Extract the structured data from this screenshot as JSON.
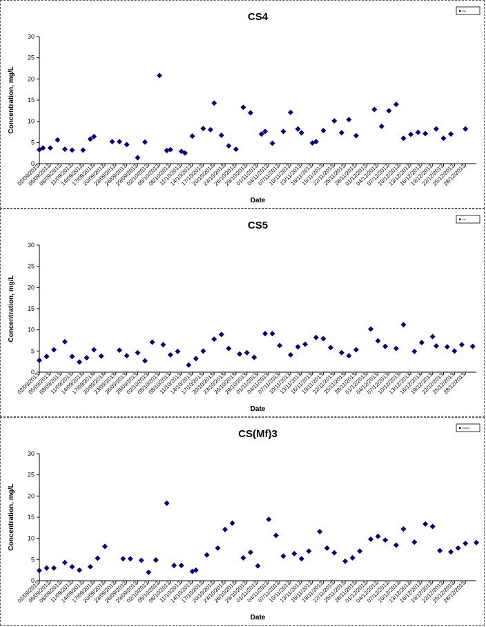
{
  "chart_data": [
    {
      "type": "scatter",
      "title": "CS4",
      "xlabel": "Date",
      "ylabel": "Concentration, mg/L",
      "ylim": [
        0,
        30
      ],
      "yticks": [
        0,
        5,
        10,
        15,
        20,
        25,
        30
      ],
      "grid": false,
      "legend_position": "top-right",
      "legend_text": "CS4",
      "marker_color": "#000080",
      "xtick_labels": [
        "02/09/2013",
        "05/09/2013",
        "08/09/2013",
        "11/09/2013",
        "14/09/2013",
        "17/09/2013",
        "20/09/2013",
        "23/09/2013",
        "26/09/2013",
        "29/09/2013",
        "02/10/2013",
        "05/10/2013",
        "08/10/2013",
        "11/10/2013",
        "14/10/2013",
        "17/10/2013",
        "20/10/2013",
        "23/10/2013",
        "26/10/2013",
        "29/10/2013",
        "01/11/2013",
        "04/11/2013",
        "07/11/2013",
        "10/11/2013",
        "13/11/2013",
        "16/11/2013",
        "19/11/2013",
        "22/11/2013",
        "25/11/2013",
        "28/11/2013",
        "01/12/2013",
        "04/12/2013",
        "07/12/2013",
        "10/12/2013",
        "13/12/2013",
        "16/12/2013",
        "19/12/2013",
        "22/12/2013",
        "25/12/2013",
        "28/12/2013"
      ],
      "series": [
        {
          "x": [
            "02/09/2013",
            "03/09/2013",
            "05/09/2013",
            "07/09/2013",
            "09/09/2013",
            "11/09/2013",
            "14/09/2013",
            "16/09/2013",
            "17/09/2013",
            "22/09/2013",
            "24/09/2013",
            "26/09/2013",
            "29/09/2013",
            "01/10/2013",
            "05/10/2013",
            "07/10/2013",
            "08/10/2013",
            "11/10/2013",
            "12/10/2013",
            "14/10/2013",
            "17/10/2013",
            "19/10/2013",
            "20/10/2013",
            "22/10/2013",
            "24/10/2013",
            "26/10/2013",
            "28/10/2013",
            "30/10/2013",
            "02/11/2013",
            "03/11/2013",
            "05/11/2013",
            "08/11/2013",
            "10/11/2013",
            "12/11/2013",
            "13/11/2013",
            "16/11/2013",
            "17/11/2013",
            "19/11/2013",
            "22/11/2013",
            "24/11/2013",
            "26/11/2013",
            "28/11/2013",
            "03/12/2013",
            "05/12/2013",
            "07/12/2013",
            "09/12/2013",
            "11/12/2013",
            "13/12/2013",
            "15/12/2013",
            "17/12/2013",
            "20/12/2013",
            "22/12/2013",
            "24/12/2013",
            "28/12/2013"
          ],
          "y": [
            3.3,
            3.7,
            3.7,
            5.6,
            3.4,
            3.2,
            3.2,
            5.8,
            6.4,
            5.2,
            5.2,
            4.5,
            1.4,
            5.1,
            20.8,
            3.1,
            3.3,
            2.9,
            2.5,
            6.5,
            8.3,
            8.0,
            14.3,
            6.7,
            4.2,
            3.4,
            13.3,
            12.0,
            7.0,
            7.6,
            4.8,
            7.6,
            12.1,
            8.2,
            7.3,
            4.9,
            5.2,
            7.8,
            10.1,
            7.3,
            10.4,
            6.6,
            12.8,
            8.8,
            12.5,
            14.0,
            6.0,
            6.9,
            7.4,
            7.1,
            8.2,
            6.0,
            7.0,
            8.2
          ]
        }
      ]
    },
    {
      "type": "scatter",
      "title": "CS5",
      "xlabel": "Date",
      "ylabel": "Concentration, mg/L",
      "ylim": [
        0,
        30
      ],
      "yticks": [
        0,
        5,
        10,
        15,
        20,
        25,
        30
      ],
      "grid": false,
      "legend_position": "top-right",
      "legend_text": "CS5",
      "marker_color": "#000080",
      "xtick_labels": [
        "02/09/2013",
        "05/09/2013",
        "08/09/2013",
        "11/09/2013",
        "14/09/2013",
        "17/09/2013",
        "20/09/2013",
        "23/09/2013",
        "26/09/2013",
        "29/09/2013",
        "02/10/2013",
        "05/10/2013",
        "08/10/2013",
        "11/10/2013",
        "14/10/2013",
        "17/10/2013",
        "20/10/2013",
        "23/10/2013",
        "26/10/2013",
        "29/10/2013",
        "01/11/2013",
        "04/11/2013",
        "07/11/2013",
        "10/11/2013",
        "13/11/2013",
        "16/11/2013",
        "19/11/2013",
        "22/11/2013",
        "25/11/2013",
        "28/11/2013",
        "01/12/2013",
        "04/12/2013",
        "07/12/2013",
        "10/12/2013",
        "13/12/2013",
        "16/12/2013",
        "19/12/2013",
        "22/12/2013",
        "25/12/2013",
        "28/12/2013"
      ],
      "series": [
        {
          "x": [
            "02/09/2013",
            "04/09/2013",
            "06/09/2013",
            "09/09/2013",
            "11/09/2013",
            "13/09/2013",
            "15/09/2013",
            "17/09/2013",
            "19/09/2013",
            "24/09/2013",
            "26/09/2013",
            "29/09/2013",
            "01/10/2013",
            "03/10/2013",
            "06/10/2013",
            "08/10/2013",
            "10/10/2013",
            "13/10/2013",
            "15/10/2013",
            "17/10/2013",
            "20/10/2013",
            "22/10/2013",
            "24/10/2013",
            "27/10/2013",
            "29/10/2013",
            "31/10/2013",
            "03/11/2013",
            "05/11/2013",
            "07/11/2013",
            "10/11/2013",
            "12/11/2013",
            "14/11/2013",
            "17/11/2013",
            "19/11/2013",
            "21/11/2013",
            "24/11/2013",
            "26/11/2013",
            "28/11/2013",
            "02/12/2013",
            "04/12/2013",
            "06/12/2013",
            "09/12/2013",
            "11/12/2013",
            "14/12/2013",
            "16/12/2013",
            "19/12/2013",
            "20/12/2013",
            "23/12/2013",
            "25/12/2013",
            "27/12/2013",
            "30/12/2013"
          ],
          "y": [
            2.8,
            3.7,
            5.3,
            7.2,
            3.7,
            2.4,
            3.4,
            5.3,
            3.8,
            5.2,
            3.9,
            4.6,
            2.7,
            7.1,
            6.5,
            4.1,
            4.9,
            1.7,
            3.2,
            5.0,
            7.8,
            8.9,
            5.6,
            4.3,
            4.6,
            3.5,
            9.1,
            9.1,
            6.3,
            4.1,
            6.0,
            6.6,
            8.2,
            7.9,
            5.8,
            4.6,
            3.9,
            5.3,
            10.2,
            7.4,
            6.1,
            5.6,
            11.2,
            4.9,
            7.0,
            8.4,
            6.2,
            6.0,
            5.0,
            6.5,
            6.1
          ]
        }
      ]
    },
    {
      "type": "scatter",
      "title": "CS(Mf)3",
      "xlabel": "Date",
      "ylabel": "Concentration, mg/L",
      "ylim": [
        0,
        30
      ],
      "yticks": [
        0,
        5,
        10,
        15,
        20,
        25,
        30
      ],
      "grid": false,
      "legend_position": "top-right",
      "legend_text": "CS(Mf)3",
      "marker_color": "#000080",
      "xtick_labels": [
        "02/09/2013",
        "05/09/2013",
        "08/09/2013",
        "11/09/2013",
        "14/09/2013",
        "17/09/2013",
        "20/09/2013",
        "23/09/2013",
        "26/09/2013",
        "29/09/2013",
        "02/10/2013",
        "05/10/2013",
        "08/10/2013",
        "11/10/2013",
        "14/10/2013",
        "17/10/2013",
        "20/10/2013",
        "23/10/2013",
        "26/10/2013",
        "29/10/2013",
        "01/11/2013",
        "04/11/2013",
        "07/11/2013",
        "10/11/2013",
        "13/11/2013",
        "16/11/2013",
        "19/11/2013",
        "22/11/2013",
        "25/11/2013",
        "28/11/2013",
        "01/12/2013",
        "04/12/2013",
        "07/12/2013",
        "10/12/2013",
        "13/12/2013",
        "16/12/2013",
        "19/12/2013",
        "22/12/2013",
        "25/12/2013",
        "28/12/2013"
      ],
      "series": [
        {
          "x": [
            "02/09/2013",
            "04/09/2013",
            "06/09/2013",
            "09/09/2013",
            "11/09/2013",
            "13/09/2013",
            "16/09/2013",
            "18/09/2013",
            "20/09/2013",
            "25/09/2013",
            "27/09/2013",
            "30/09/2013",
            "02/10/2013",
            "04/10/2013",
            "07/10/2013",
            "09/10/2013",
            "11/10/2013",
            "14/10/2013",
            "15/10/2013",
            "18/10/2013",
            "21/10/2013",
            "23/10/2013",
            "25/10/2013",
            "28/10/2013",
            "30/10/2013",
            "01/11/2013",
            "04/11/2013",
            "06/11/2013",
            "08/11/2013",
            "11/11/2013",
            "13/11/2013",
            "15/11/2013",
            "18/11/2013",
            "20/11/2013",
            "22/11/2013",
            "25/11/2013",
            "27/11/2013",
            "29/11/2013",
            "02/12/2013",
            "04/12/2013",
            "06/12/2013",
            "09/12/2013",
            "11/12/2013",
            "14/12/2013",
            "17/12/2013",
            "19/12/2013",
            "21/12/2013",
            "24/12/2013",
            "26/12/2013",
            "28/12/2013",
            "31/12/2013"
          ],
          "y": [
            2.4,
            3.0,
            3.0,
            4.3,
            3.3,
            2.5,
            3.3,
            5.3,
            8.1,
            5.2,
            5.2,
            4.8,
            2.0,
            4.9,
            18.3,
            3.6,
            3.6,
            2.2,
            2.5,
            6.1,
            7.7,
            12.1,
            13.6,
            5.4,
            6.7,
            3.5,
            14.5,
            10.7,
            5.8,
            6.4,
            5.2,
            7.0,
            11.6,
            7.7,
            6.6,
            4.6,
            5.4,
            7.0,
            9.8,
            10.5,
            9.6,
            8.4,
            12.2,
            9.1,
            13.4,
            12.8,
            7.1,
            6.8,
            7.7,
            8.8,
            9.0
          ]
        }
      ]
    }
  ]
}
